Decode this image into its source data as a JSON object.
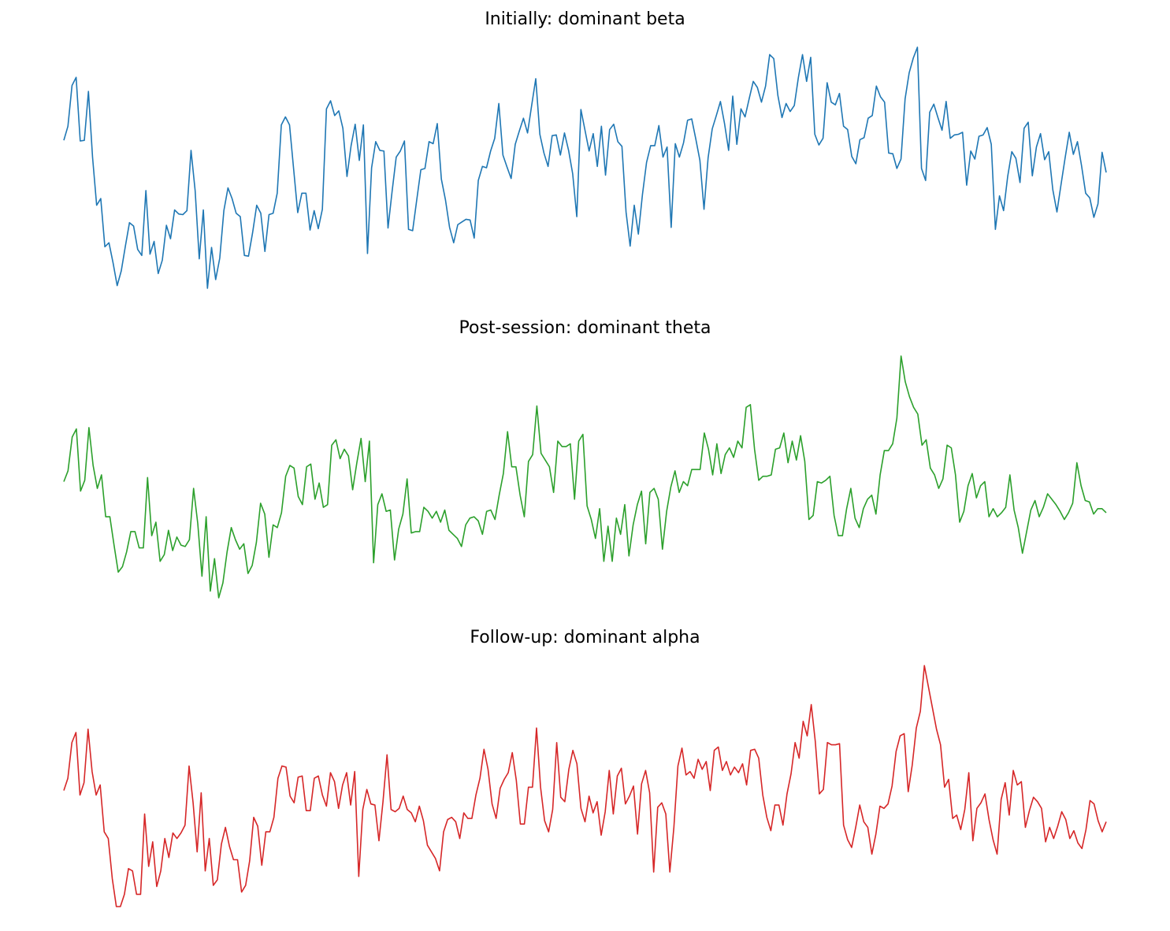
{
  "chart_data": [
    {
      "type": "line",
      "title": "Initially: dominant beta",
      "color": "#1f77b4",
      "values": [
        0.6,
        0.81,
        1.42,
        1.54,
        0.59,
        0.6,
        1.33,
        0.35,
        -0.37,
        -0.27,
        -0.99,
        -0.93,
        -1.23,
        -1.57,
        -1.35,
        -0.98,
        -0.63,
        -0.68,
        -1.03,
        -1.12,
        -0.15,
        -1.1,
        -0.91,
        -1.39,
        -1.19,
        -0.67,
        -0.87,
        -0.44,
        -0.5,
        -0.51,
        -0.45,
        0.45,
        -0.15,
        -1.17,
        -0.44,
        -1.61,
        -1.0,
        -1.48,
        -1.16,
        -0.45,
        -0.11,
        -0.27,
        -0.49,
        -0.54,
        -1.12,
        -1.13,
        -0.78,
        -0.37,
        -0.49,
        -1.06,
        -0.51,
        -0.49,
        -0.19,
        0.83,
        0.95,
        0.83,
        0.17,
        -0.48,
        -0.19,
        -0.19,
        -0.74,
        -0.45,
        -0.72,
        -0.43,
        1.07,
        1.19,
        0.97,
        1.04,
        0.78,
        0.06,
        0.52,
        0.84,
        0.3,
        0.83,
        -1.09,
        0.19,
        0.58,
        0.45,
        0.44,
        -0.71,
        -0.16,
        0.35,
        0.44,
        0.59,
        -0.73,
        -0.75,
        -0.29,
        0.16,
        0.18,
        0.58,
        0.55,
        0.85,
        0.02,
        -0.29,
        -0.7,
        -0.93,
        -0.66,
        -0.62,
        -0.58,
        -0.59,
        -0.86,
        -0.0,
        0.21,
        0.19,
        0.44,
        0.63,
        1.15,
        0.38,
        0.2,
        0.03,
        0.54,
        0.74,
        0.93,
        0.71,
        1.12,
        1.52,
        0.69,
        0.41,
        0.21,
        0.67,
        0.68,
        0.38,
        0.71,
        0.45,
        0.1,
        -0.54,
        1.06,
        0.75,
        0.44,
        0.7,
        0.21,
        0.81,
        0.08,
        0.76,
        0.84,
        0.58,
        0.51,
        -0.47,
        -0.98,
        -0.37,
        -0.8,
        -0.21,
        0.27,
        0.52,
        0.52,
        0.82,
        0.35,
        0.5,
        -0.7,
        0.55,
        0.35,
        0.56,
        0.9,
        0.92,
        0.62,
        0.3,
        -0.43,
        0.34,
        0.77,
        0.97,
        1.18,
        0.85,
        0.45,
        1.26,
        0.54,
        1.07,
        0.95,
        1.22,
        1.48,
        1.39,
        1.17,
        1.41,
        1.88,
        1.82,
        1.27,
        0.94,
        1.15,
        1.03,
        1.12,
        1.54,
        1.88,
        1.48,
        1.84,
        0.69,
        0.53,
        0.63,
        1.46,
        1.17,
        1.13,
        1.3,
        0.81,
        0.76,
        0.36,
        0.25,
        0.61,
        0.64,
        0.93,
        0.97,
        1.41,
        1.25,
        1.17,
        0.41,
        0.4,
        0.18,
        0.32,
        1.22,
        1.61,
        1.83,
        1.99,
        0.18,
        0.0,
        1.02,
        1.14,
        0.94,
        0.75,
        1.18,
        0.63,
        0.68,
        0.69,
        0.72,
        -0.07,
        0.44,
        0.32,
        0.66,
        0.68,
        0.79,
        0.54,
        -0.73,
        -0.23,
        -0.45,
        0.06,
        0.43,
        0.33,
        -0.03,
        0.78,
        0.87,
        0.07,
        0.5,
        0.7,
        0.31,
        0.43,
        -0.14,
        -0.47,
        -0.06,
        0.34,
        0.72,
        0.39,
        0.58,
        0.22,
        -0.19,
        -0.26,
        -0.55,
        -0.35,
        0.42,
        0.12
      ]
    },
    {
      "type": "line",
      "title": "Post-session: dominant theta",
      "color": "#2ca02c",
      "values": [
        0.0,
        0.08,
        0.33,
        0.39,
        -0.07,
        0.01,
        0.4,
        0.12,
        -0.05,
        0.05,
        -0.26,
        -0.26,
        -0.47,
        -0.67,
        -0.63,
        -0.52,
        -0.37,
        -0.37,
        -0.49,
        -0.49,
        0.03,
        -0.4,
        -0.3,
        -0.59,
        -0.54,
        -0.36,
        -0.51,
        -0.41,
        -0.47,
        -0.48,
        -0.43,
        -0.05,
        -0.31,
        -0.7,
        -0.26,
        -0.81,
        -0.57,
        -0.86,
        -0.75,
        -0.52,
        -0.34,
        -0.43,
        -0.5,
        -0.46,
        -0.68,
        -0.62,
        -0.45,
        -0.16,
        -0.24,
        -0.56,
        -0.32,
        -0.34,
        -0.23,
        0.04,
        0.12,
        0.1,
        -0.11,
        -0.17,
        0.11,
        0.13,
        -0.13,
        -0.01,
        -0.19,
        -0.17,
        0.27,
        0.31,
        0.17,
        0.24,
        0.19,
        -0.06,
        0.14,
        0.32,
        0.0,
        0.3,
        -0.6,
        -0.17,
        -0.09,
        -0.22,
        -0.21,
        -0.58,
        -0.35,
        -0.24,
        0.02,
        -0.38,
        -0.37,
        -0.37,
        -0.19,
        -0.22,
        -0.27,
        -0.22,
        -0.3,
        -0.21,
        -0.36,
        -0.39,
        -0.42,
        -0.48,
        -0.32,
        -0.27,
        -0.26,
        -0.29,
        -0.39,
        -0.22,
        -0.21,
        -0.28,
        -0.1,
        0.06,
        0.37,
        0.11,
        0.11,
        -0.1,
        -0.26,
        0.15,
        0.2,
        0.56,
        0.21,
        0.16,
        0.11,
        -0.08,
        0.3,
        0.26,
        0.26,
        0.28,
        -0.13,
        0.3,
        0.35,
        -0.18,
        -0.28,
        -0.42,
        -0.2,
        -0.59,
        -0.33,
        -0.59,
        -0.27,
        -0.39,
        -0.17,
        -0.55,
        -0.32,
        -0.17,
        -0.07,
        -0.46,
        -0.08,
        -0.05,
        -0.13,
        -0.5,
        -0.22,
        -0.04,
        0.08,
        -0.08,
        0.0,
        -0.03,
        0.09,
        0.09,
        0.09,
        0.36,
        0.24,
        0.05,
        0.28,
        0.06,
        0.2,
        0.25,
        0.18,
        0.3,
        0.25,
        0.55,
        0.57,
        0.24,
        0.01,
        0.04,
        0.04,
        0.05,
        0.24,
        0.25,
        0.36,
        0.14,
        0.3,
        0.16,
        0.34,
        0.15,
        -0.28,
        -0.25,
        0.0,
        -0.01,
        0.01,
        0.04,
        -0.25,
        -0.4,
        -0.4,
        -0.2,
        -0.05,
        -0.27,
        -0.34,
        -0.2,
        -0.13,
        -0.1,
        -0.24,
        0.05,
        0.23,
        0.23,
        0.28,
        0.47,
        0.93,
        0.74,
        0.63,
        0.55,
        0.5,
        0.27,
        0.31,
        0.1,
        0.05,
        -0.05,
        0.02,
        0.27,
        0.25,
        0.05,
        -0.3,
        -0.22,
        -0.03,
        0.06,
        -0.12,
        -0.03,
        0.0,
        -0.26,
        -0.2,
        -0.26,
        -0.23,
        -0.19,
        0.05,
        -0.21,
        -0.34,
        -0.53,
        -0.37,
        -0.21,
        -0.14,
        -0.26,
        -0.19,
        -0.09,
        -0.13,
        -0.17,
        -0.22,
        -0.28,
        -0.23,
        -0.16,
        0.14,
        -0.03,
        -0.14,
        -0.15,
        -0.24,
        -0.2,
        -0.2,
        -0.23
      ]
    },
    {
      "type": "line",
      "title": "Follow-up: dominant alpha",
      "color": "#d62728",
      "values": [
        0.0,
        0.11,
        0.43,
        0.52,
        -0.04,
        0.07,
        0.55,
        0.17,
        -0.04,
        0.05,
        -0.37,
        -0.43,
        -0.79,
        -1.04,
        -1.04,
        -0.93,
        -0.7,
        -0.72,
        -0.93,
        -0.93,
        -0.21,
        -0.68,
        -0.46,
        -0.86,
        -0.72,
        -0.43,
        -0.6,
        -0.38,
        -0.43,
        -0.38,
        -0.31,
        0.22,
        -0.11,
        -0.55,
        -0.02,
        -0.72,
        -0.43,
        -0.85,
        -0.8,
        -0.48,
        -0.33,
        -0.5,
        -0.62,
        -0.62,
        -0.91,
        -0.85,
        -0.63,
        -0.24,
        -0.32,
        -0.67,
        -0.37,
        -0.37,
        -0.24,
        0.11,
        0.22,
        0.21,
        -0.05,
        -0.11,
        0.12,
        0.13,
        -0.18,
        -0.18,
        0.11,
        0.13,
        -0.04,
        -0.14,
        0.16,
        0.08,
        -0.16,
        0.05,
        0.16,
        -0.13,
        0.17,
        -0.77,
        -0.17,
        0.01,
        -0.12,
        -0.13,
        -0.45,
        -0.1,
        0.32,
        -0.17,
        -0.19,
        -0.16,
        -0.05,
        -0.17,
        -0.2,
        -0.28,
        -0.14,
        -0.27,
        -0.49,
        -0.55,
        -0.61,
        -0.72,
        -0.37,
        -0.26,
        -0.24,
        -0.28,
        -0.43,
        -0.2,
        -0.25,
        -0.25,
        -0.04,
        0.11,
        0.37,
        0.19,
        -0.12,
        -0.25,
        0.02,
        0.1,
        0.16,
        0.34,
        0.09,
        -0.3,
        -0.3,
        0.03,
        0.03,
        0.56,
        0.03,
        -0.27,
        -0.37,
        -0.17,
        0.43,
        -0.06,
        -0.1,
        0.19,
        0.36,
        0.24,
        -0.16,
        -0.28,
        -0.05,
        -0.2,
        -0.1,
        -0.4,
        -0.19,
        0.18,
        -0.21,
        0.13,
        0.2,
        -0.12,
        -0.05,
        0.04,
        -0.39,
        0.06,
        0.18,
        -0.02,
        -0.73,
        -0.15,
        -0.11,
        -0.21,
        -0.73,
        -0.33,
        0.22,
        0.38,
        0.14,
        0.17,
        0.11,
        0.28,
        0.19,
        0.26,
        0.0,
        0.36,
        0.39,
        0.18,
        0.26,
        0.14,
        0.21,
        0.16,
        0.24,
        0.05,
        0.36,
        0.37,
        0.29,
        -0.04,
        -0.24,
        -0.36,
        -0.13,
        -0.13,
        -0.31,
        -0.03,
        0.15,
        0.43,
        0.29,
        0.62,
        0.49,
        0.77,
        0.44,
        -0.03,
        0.01,
        0.43,
        0.41,
        0.41,
        0.42,
        -0.31,
        -0.44,
        -0.51,
        -0.33,
        -0.13,
        -0.28,
        -0.33,
        -0.57,
        -0.39,
        -0.14,
        -0.16,
        -0.12,
        0.04,
        0.35,
        0.49,
        0.51,
        -0.01,
        0.23,
        0.56,
        0.71,
        1.12,
        0.93,
        0.74,
        0.55,
        0.41,
        0.03,
        0.1,
        -0.25,
        -0.22,
        -0.35,
        -0.17,
        0.16,
        -0.45,
        -0.16,
        -0.11,
        -0.03,
        -0.26,
        -0.44,
        -0.57,
        -0.08,
        0.07,
        -0.22,
        0.18,
        0.05,
        0.08,
        -0.33,
        -0.18,
        -0.06,
        -0.1,
        -0.16,
        -0.46,
        -0.33,
        -0.43,
        -0.32,
        -0.19,
        -0.26,
        -0.43,
        -0.36,
        -0.47,
        -0.52,
        -0.35,
        -0.09,
        -0.12,
        -0.27,
        -0.37,
        -0.28
      ]
    }
  ]
}
